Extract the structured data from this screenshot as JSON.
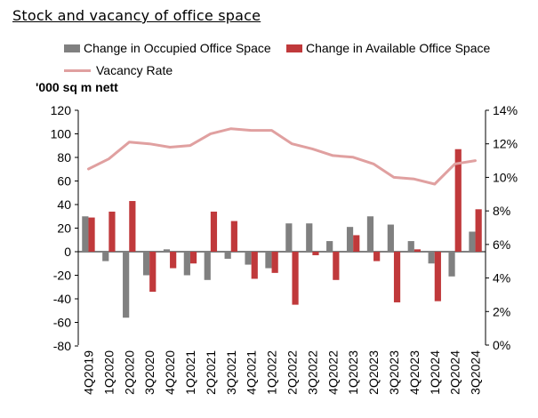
{
  "chart_data": {
    "type": "bar",
    "title": "Stock and vacancy of office space",
    "ylabel": "'000 sq m nett",
    "categories": [
      "4Q2019",
      "1Q2020",
      "2Q2020",
      "3Q2020",
      "4Q2020",
      "1Q2021",
      "2Q2021",
      "3Q2021",
      "4Q2021",
      "1Q2022",
      "2Q2022",
      "3Q2022",
      "4Q2022",
      "1Q2023",
      "2Q2023",
      "3Q2023",
      "4Q2023",
      "1Q2024",
      "2Q2024",
      "3Q2024"
    ],
    "ylim": [
      -80,
      120
    ],
    "yticks": [
      "120",
      "100",
      "80",
      "60",
      "40",
      "20",
      "0",
      "-20",
      "-40",
      "-60",
      "-80"
    ],
    "y2lim": [
      0,
      0.14
    ],
    "y2ticks": [
      "14%",
      "12%",
      "10%",
      "8%",
      "6%",
      "4%",
      "2%",
      "0%"
    ],
    "series": [
      {
        "name": "Change in Occupied Office Space",
        "type": "bar",
        "color": "#808080",
        "values": [
          30,
          -8,
          -56,
          -20,
          2,
          -20,
          -24,
          -6,
          -11,
          -14,
          24,
          24,
          9,
          21,
          30,
          23,
          9,
          -10,
          -21,
          17
        ]
      },
      {
        "name": "Change in Available Office Space",
        "type": "bar",
        "color": "#c0393b",
        "values": [
          29,
          34,
          43,
          -34,
          -14,
          -10,
          34,
          26,
          -23,
          -18,
          -45,
          -3,
          -24,
          14,
          -8,
          -43,
          2,
          -42,
          87,
          36
        ]
      },
      {
        "name": "Vacancy Rate",
        "type": "line",
        "axis": "right",
        "color": "#e0a0a0",
        "values": [
          0.105,
          0.111,
          0.121,
          0.12,
          0.118,
          0.119,
          0.126,
          0.129,
          0.128,
          0.128,
          0.12,
          0.117,
          0.113,
          0.112,
          0.108,
          0.1,
          0.099,
          0.096,
          0.108,
          0.11
        ]
      }
    ],
    "legend": "top",
    "grid": false
  }
}
